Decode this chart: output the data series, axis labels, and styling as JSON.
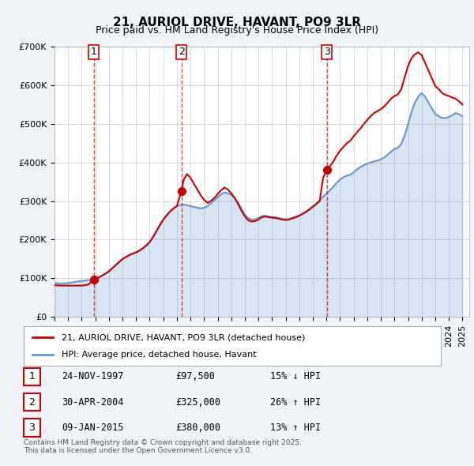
{
  "title1": "21, AURIOL DRIVE, HAVANT, PO9 3LR",
  "title2": "Price paid vs. HM Land Registry's House Price Index (HPI)",
  "legend_label1": "21, AURIOL DRIVE, HAVANT, PO9 3LR (detached house)",
  "legend_label2": "HPI: Average price, detached house, Havant",
  "sale_dates": [
    "24-NOV-1997",
    "30-APR-2004",
    "09-JAN-2015"
  ],
  "sale_prices": [
    97500,
    325000,
    380000
  ],
  "sale_hpi_pct": [
    "15% ↓ HPI",
    "26% ↑ HPI",
    "13% ↑ HPI"
  ],
  "sale_years": [
    1997.9,
    2004.33,
    2015.03
  ],
  "ylabel_ticks": [
    "£0",
    "£100K",
    "£200K",
    "£300K",
    "£400K",
    "£500K",
    "£600K",
    "£700K"
  ],
  "ytick_vals": [
    0,
    100000,
    200000,
    300000,
    400000,
    500000,
    600000,
    700000
  ],
  "background_color": "#f0f4f8",
  "plot_bg_color": "#ffffff",
  "red_color": "#cc0000",
  "blue_color": "#6699cc",
  "footer": "Contains HM Land Registry data © Crown copyright and database right 2025.\nThis data is licensed under the Open Government Licence v3.0.",
  "hpi_years": [
    1995.0,
    1995.25,
    1995.5,
    1995.75,
    1996.0,
    1996.25,
    1996.5,
    1996.75,
    1997.0,
    1997.25,
    1997.5,
    1997.75,
    1998.0,
    1998.25,
    1998.5,
    1998.75,
    1999.0,
    1999.25,
    1999.5,
    1999.75,
    2000.0,
    2000.25,
    2000.5,
    2000.75,
    2001.0,
    2001.25,
    2001.5,
    2001.75,
    2002.0,
    2002.25,
    2002.5,
    2002.75,
    2003.0,
    2003.25,
    2003.5,
    2003.75,
    2004.0,
    2004.25,
    2004.5,
    2004.75,
    2005.0,
    2005.25,
    2005.5,
    2005.75,
    2006.0,
    2006.25,
    2006.5,
    2006.75,
    2007.0,
    2007.25,
    2007.5,
    2007.75,
    2008.0,
    2008.25,
    2008.5,
    2008.75,
    2009.0,
    2009.25,
    2009.5,
    2009.75,
    2010.0,
    2010.25,
    2010.5,
    2010.75,
    2011.0,
    2011.25,
    2011.5,
    2011.75,
    2012.0,
    2012.25,
    2012.5,
    2012.75,
    2013.0,
    2013.25,
    2013.5,
    2013.75,
    2014.0,
    2014.25,
    2014.5,
    2014.75,
    2015.0,
    2015.25,
    2015.5,
    2015.75,
    2016.0,
    2016.25,
    2016.5,
    2016.75,
    2017.0,
    2017.25,
    2017.5,
    2017.75,
    2018.0,
    2018.25,
    2018.5,
    2018.75,
    2019.0,
    2019.25,
    2019.5,
    2019.75,
    2020.0,
    2020.25,
    2020.5,
    2020.75,
    2021.0,
    2021.25,
    2021.5,
    2021.75,
    2022.0,
    2022.25,
    2022.5,
    2022.75,
    2023.0,
    2023.25,
    2023.5,
    2023.75,
    2024.0,
    2024.25,
    2024.5,
    2024.75,
    2025.0
  ],
  "hpi_values": [
    88000,
    87000,
    86500,
    87000,
    88000,
    89000,
    90500,
    92000,
    93000,
    94000,
    95500,
    97000,
    99000,
    102000,
    107000,
    112000,
    118000,
    126000,
    134000,
    142000,
    150000,
    155000,
    160000,
    164000,
    167000,
    172000,
    178000,
    185000,
    194000,
    207000,
    222000,
    238000,
    252000,
    263000,
    273000,
    281000,
    287000,
    290000,
    291000,
    289000,
    287000,
    285000,
    283000,
    281000,
    283000,
    287000,
    294000,
    302000,
    310000,
    318000,
    322000,
    320000,
    316000,
    308000,
    296000,
    280000,
    265000,
    256000,
    252000,
    253000,
    257000,
    261000,
    262000,
    260000,
    259000,
    258000,
    256000,
    254000,
    253000,
    254000,
    257000,
    260000,
    263000,
    267000,
    273000,
    280000,
    287000,
    294000,
    302000,
    311000,
    320000,
    328000,
    337000,
    347000,
    356000,
    362000,
    366000,
    368000,
    375000,
    382000,
    388000,
    393000,
    397000,
    400000,
    403000,
    405000,
    408000,
    413000,
    420000,
    428000,
    435000,
    438000,
    448000,
    470000,
    500000,
    530000,
    555000,
    570000,
    580000,
    570000,
    555000,
    540000,
    525000,
    520000,
    515000,
    515000,
    518000,
    522000,
    528000,
    525000,
    520000
  ],
  "hpi_indexed_years": [
    1995.0,
    1995.25,
    1995.5,
    1995.75,
    1996.0,
    1996.25,
    1996.5,
    1996.75,
    1997.0,
    1997.25,
    1997.5,
    1997.75,
    1998.0,
    1998.25,
    1998.5,
    1998.75,
    1999.0,
    1999.25,
    1999.5,
    1999.75,
    2000.0,
    2000.25,
    2000.5,
    2000.75,
    2001.0,
    2001.25,
    2001.5,
    2001.75,
    2002.0,
    2002.25,
    2002.5,
    2002.75,
    2003.0,
    2003.25,
    2003.5,
    2003.75,
    2004.0,
    2004.25,
    2004.5,
    2004.75,
    2005.0,
    2005.25,
    2005.5,
    2005.75,
    2006.0,
    2006.25,
    2006.5,
    2006.75,
    2007.0,
    2007.25,
    2007.5,
    2007.75,
    2008.0,
    2008.25,
    2008.5,
    2008.75,
    2009.0,
    2009.25,
    2009.5,
    2009.75,
    2010.0,
    2010.25,
    2010.5,
    2010.75,
    2011.0,
    2011.25,
    2011.5,
    2011.75,
    2012.0,
    2012.25,
    2012.5,
    2012.75,
    2013.0,
    2013.25,
    2013.5,
    2013.75,
    2014.0,
    2014.25,
    2014.5,
    2014.75,
    2015.0,
    2015.25,
    2015.5,
    2015.75,
    2016.0,
    2016.25,
    2016.5,
    2016.75,
    2017.0,
    2017.25,
    2017.5,
    2017.75,
    2018.0,
    2018.25,
    2018.5,
    2018.75,
    2019.0,
    2019.25,
    2019.5,
    2019.75,
    2020.0,
    2020.25,
    2020.5,
    2020.75,
    2021.0,
    2021.25,
    2021.5,
    2021.75,
    2022.0,
    2022.25,
    2022.5,
    2022.75,
    2023.0,
    2023.25,
    2023.5,
    2023.75,
    2024.0,
    2024.25,
    2024.5,
    2024.75,
    2025.0
  ],
  "red_line_years": [
    1995.0,
    1995.25,
    1995.5,
    1995.75,
    1996.0,
    1996.25,
    1996.5,
    1996.75,
    1997.0,
    1997.25,
    1997.5,
    1997.9,
    1998.0,
    1998.25,
    1998.5,
    1998.75,
    1999.0,
    1999.25,
    1999.5,
    1999.75,
    2000.0,
    2000.25,
    2000.5,
    2000.75,
    2001.0,
    2001.25,
    2001.5,
    2001.75,
    2002.0,
    2002.25,
    2002.5,
    2002.75,
    2003.0,
    2003.25,
    2003.5,
    2003.75,
    2004.0,
    2004.33,
    2004.5,
    2004.75,
    2005.0,
    2005.25,
    2005.5,
    2005.75,
    2006.0,
    2006.25,
    2006.5,
    2006.75,
    2007.0,
    2007.25,
    2007.5,
    2007.75,
    2008.0,
    2008.25,
    2008.5,
    2008.75,
    2009.0,
    2009.25,
    2009.5,
    2009.75,
    2010.0,
    2010.25,
    2010.5,
    2010.75,
    2011.0,
    2011.25,
    2011.5,
    2011.75,
    2012.0,
    2012.25,
    2012.5,
    2012.75,
    2013.0,
    2013.25,
    2013.5,
    2013.75,
    2014.0,
    2014.25,
    2014.5,
    2014.75,
    2015.03,
    2015.25,
    2015.5,
    2015.75,
    2016.0,
    2016.25,
    2016.5,
    2016.75,
    2017.0,
    2017.25,
    2017.5,
    2017.75,
    2018.0,
    2018.25,
    2018.5,
    2018.75,
    2019.0,
    2019.25,
    2019.5,
    2019.75,
    2020.0,
    2020.25,
    2020.5,
    2020.75,
    2021.0,
    2021.25,
    2021.5,
    2021.75,
    2022.0,
    2022.25,
    2022.5,
    2022.75,
    2023.0,
    2023.25,
    2023.5,
    2023.75,
    2024.0,
    2024.25,
    2024.5,
    2024.75,
    2025.0
  ],
  "red_line_values": [
    82000,
    81500,
    81000,
    81000,
    81000,
    81000,
    81000,
    81000,
    81000,
    82000,
    84000,
    97500,
    99000,
    102000,
    107000,
    112000,
    118000,
    126000,
    134000,
    142000,
    150000,
    155000,
    160000,
    164000,
    167000,
    172000,
    178000,
    185000,
    194000,
    207000,
    222000,
    238000,
    252000,
    263000,
    273000,
    281000,
    287000,
    325000,
    355000,
    370000,
    360000,
    345000,
    330000,
    315000,
    303000,
    295000,
    300000,
    308000,
    318000,
    328000,
    335000,
    330000,
    320000,
    308000,
    292000,
    275000,
    260000,
    250000,
    247000,
    248000,
    252000,
    258000,
    260000,
    258000,
    257000,
    256000,
    254000,
    252000,
    251000,
    252000,
    255000,
    258000,
    262000,
    267000,
    272000,
    278000,
    285000,
    292000,
    300000,
    360000,
    380000,
    390000,
    402000,
    418000,
    430000,
    440000,
    450000,
    456000,
    468000,
    478000,
    488000,
    500000,
    510000,
    520000,
    528000,
    533000,
    538000,
    545000,
    555000,
    565000,
    572000,
    576000,
    590000,
    620000,
    650000,
    670000,
    680000,
    685000,
    678000,
    658000,
    638000,
    618000,
    598000,
    590000,
    580000,
    575000,
    572000,
    568000,
    565000,
    558000,
    550000
  ]
}
